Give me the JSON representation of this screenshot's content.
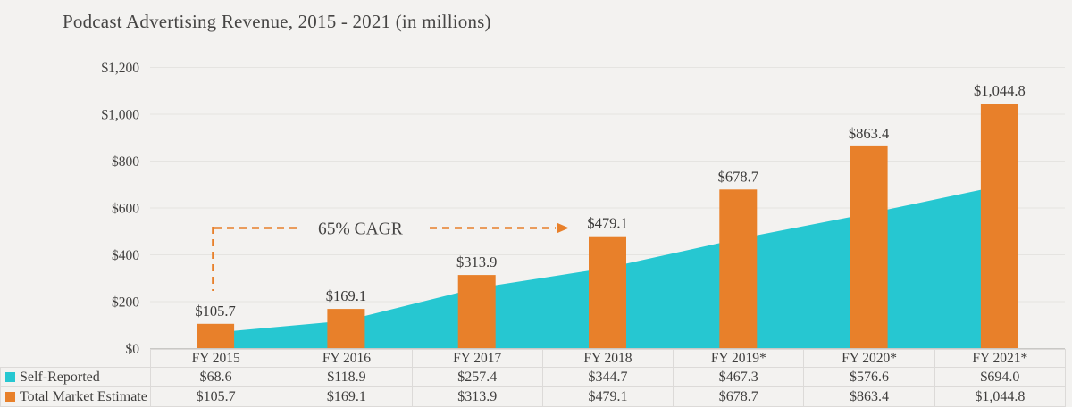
{
  "title": "Podcast Advertising Revenue, 2015 - 2021 (in millions)",
  "colors": {
    "background": "#f3f2f0",
    "self_reported": "#26c7d1",
    "total_market": "#e8802a",
    "grid": "#e5e4e1",
    "axis": "#c9c8c5",
    "table_border": "#dcdad8",
    "text": "#3f3e3d"
  },
  "chart_data": {
    "type": "combo (area + bar)",
    "title": "Podcast Advertising Revenue, 2015 - 2021 (in millions)",
    "categories": [
      "FY 2015",
      "FY 2016",
      "FY 2017",
      "FY 2018",
      "FY 2019*",
      "FY 2020*",
      "FY 2021*"
    ],
    "series": [
      {
        "name": "Self-Reported",
        "chart": "area",
        "color": "#26c7d1",
        "values": [
          68.6,
          118.9,
          257.4,
          344.7,
          467.3,
          576.6,
          694.0
        ],
        "labels": [
          "$68.6",
          "$118.9",
          "$257.4",
          "$344.7",
          "$467.3",
          "$576.6",
          "$694.0"
        ]
      },
      {
        "name": "Total Market Estimate",
        "chart": "bar",
        "color": "#e8802a",
        "values": [
          105.7,
          169.1,
          313.9,
          479.1,
          678.7,
          863.4,
          1044.8
        ],
        "labels": [
          "$105.7",
          "$169.1",
          "$313.9",
          "$479.1",
          "$678.7",
          "$863.4",
          "$1,044.8"
        ]
      }
    ],
    "y_axis": {
      "min": 0,
      "max": 1200,
      "ticks": [
        {
          "value": 1200,
          "label": "$1,200"
        },
        {
          "value": 1000,
          "label": "$1,000"
        },
        {
          "value": 800,
          "label": "$800"
        },
        {
          "value": 600,
          "label": "$600"
        },
        {
          "value": 400,
          "label": "$400"
        },
        {
          "value": 200,
          "label": "$200"
        },
        {
          "value": 0,
          "label": "$0"
        }
      ]
    },
    "grid": true,
    "annotation": {
      "text": "65% CAGR"
    },
    "legend_position": "table rows at bottom-left"
  },
  "table": {
    "rows": [
      {
        "label": "Self-Reported",
        "swatch": "#26c7d1",
        "values": [
          "$68.6",
          "$118.9",
          "$257.4",
          "$344.7",
          "$467.3",
          "$576.6",
          "$694.0"
        ]
      },
      {
        "label": "Total Market Estimate",
        "swatch": "#e8802a",
        "values": [
          "$105.7",
          "$169.1",
          "$313.9",
          "$479.1",
          "$678.7",
          "$863.4",
          "$1,044.8"
        ]
      }
    ]
  }
}
